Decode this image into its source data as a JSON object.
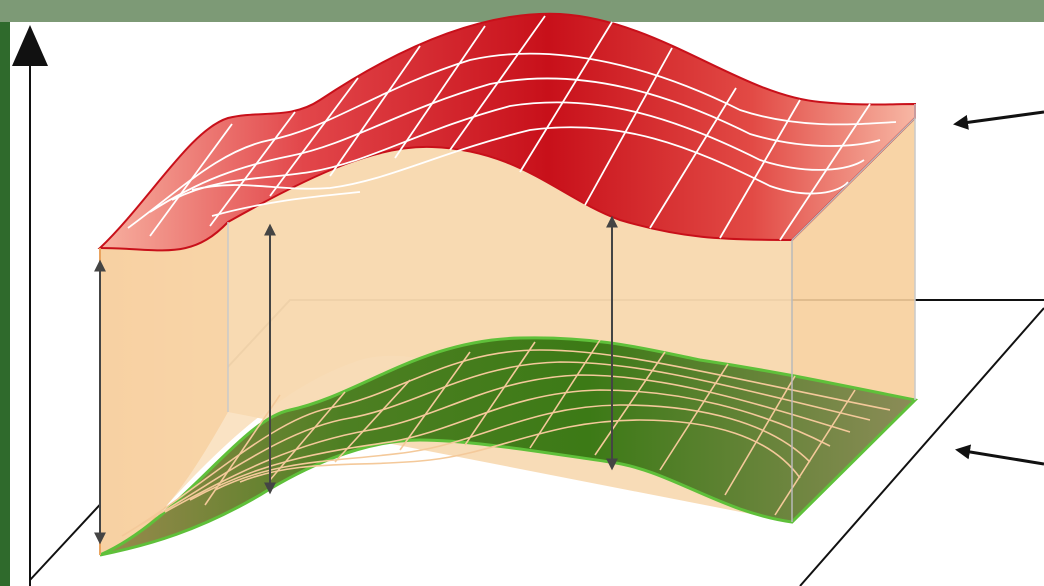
{
  "diagram": {
    "description_free": true,
    "colors": {
      "frame_background": "#7d9a76",
      "left_strip": "#2f6a2c",
      "canvas": "#ffffff",
      "top_surface": "#d4141c",
      "top_surface_light": "#f6a08c",
      "bottom_surface": "#3f7d1c",
      "bottom_surface_edge": "#5fc03a",
      "volume_fill": "#f6c68e",
      "grid_top": "#ffffff",
      "grid_bottom": "#f4c99a",
      "arrows": "#444444",
      "outline": "#111111"
    },
    "icons": {
      "vertical_axis": "up-arrow-icon",
      "thickness_markers": "double-headed-arrow-icon",
      "pointer": "left-arrow-icon"
    }
  }
}
